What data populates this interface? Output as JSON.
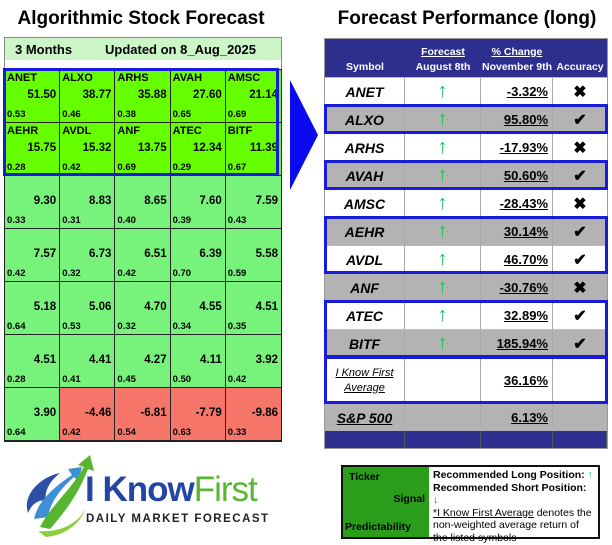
{
  "left": {
    "title": "Algorithmic Stock Forecast",
    "period": "3 Months",
    "updated": "Updated on 8_Aug_2025",
    "cells": [
      {
        "ticker": "ANET",
        "signal": "51.50",
        "pred": "0.53",
        "tone": "top"
      },
      {
        "ticker": "ALXO",
        "signal": "38.77",
        "pred": "0.46",
        "tone": "top"
      },
      {
        "ticker": "ARHS",
        "signal": "35.88",
        "pred": "0.38",
        "tone": "top"
      },
      {
        "ticker": "AVAH",
        "signal": "27.60",
        "pred": "0.65",
        "tone": "top"
      },
      {
        "ticker": "AMSC",
        "signal": "21.14",
        "pred": "0.69",
        "tone": "top"
      },
      {
        "ticker": "AEHR",
        "signal": "15.75",
        "pred": "0.28",
        "tone": "top"
      },
      {
        "ticker": "AVDL",
        "signal": "15.32",
        "pred": "0.42",
        "tone": "top"
      },
      {
        "ticker": "ANF",
        "signal": "13.75",
        "pred": "0.69",
        "tone": "top"
      },
      {
        "ticker": "ATEC",
        "signal": "12.34",
        "pred": "0.29",
        "tone": "top"
      },
      {
        "ticker": "BITF",
        "signal": "11.39",
        "pred": "0.67",
        "tone": "top"
      },
      {
        "ticker": "",
        "signal": "9.30",
        "pred": "0.33",
        "tone": "mid"
      },
      {
        "ticker": "",
        "signal": "8.83",
        "pred": "0.31",
        "tone": "mid"
      },
      {
        "ticker": "",
        "signal": "8.65",
        "pred": "0.40",
        "tone": "mid"
      },
      {
        "ticker": "",
        "signal": "7.60",
        "pred": "0.39",
        "tone": "mid"
      },
      {
        "ticker": "",
        "signal": "7.59",
        "pred": "0.43",
        "tone": "mid"
      },
      {
        "ticker": "",
        "signal": "7.57",
        "pred": "0.42",
        "tone": "mid"
      },
      {
        "ticker": "",
        "signal": "6.73",
        "pred": "0.32",
        "tone": "mid"
      },
      {
        "ticker": "",
        "signal": "6.51",
        "pred": "0.42",
        "tone": "mid"
      },
      {
        "ticker": "",
        "signal": "6.39",
        "pred": "0.70",
        "tone": "mid"
      },
      {
        "ticker": "",
        "signal": "5.58",
        "pred": "0.59",
        "tone": "mid"
      },
      {
        "ticker": "",
        "signal": "5.18",
        "pred": "0.64",
        "tone": "mid"
      },
      {
        "ticker": "",
        "signal": "5.06",
        "pred": "0.53",
        "tone": "mid"
      },
      {
        "ticker": "",
        "signal": "4.70",
        "pred": "0.32",
        "tone": "mid"
      },
      {
        "ticker": "",
        "signal": "4.55",
        "pred": "0.34",
        "tone": "mid"
      },
      {
        "ticker": "",
        "signal": "4.51",
        "pred": "0.35",
        "tone": "mid"
      },
      {
        "ticker": "",
        "signal": "4.51",
        "pred": "0.28",
        "tone": "mid"
      },
      {
        "ticker": "",
        "signal": "4.41",
        "pred": "0.41",
        "tone": "mid"
      },
      {
        "ticker": "",
        "signal": "4.27",
        "pred": "0.45",
        "tone": "mid"
      },
      {
        "ticker": "",
        "signal": "4.11",
        "pred": "0.50",
        "tone": "mid"
      },
      {
        "ticker": "",
        "signal": "3.92",
        "pred": "0.42",
        "tone": "mid"
      },
      {
        "ticker": "",
        "signal": "3.90",
        "pred": "0.64",
        "tone": "mid"
      },
      {
        "ticker": "",
        "signal": "-4.46",
        "pred": "0.42",
        "tone": "neg"
      },
      {
        "ticker": "",
        "signal": "-6.81",
        "pred": "0.54",
        "tone": "neg"
      },
      {
        "ticker": "",
        "signal": "-7.79",
        "pred": "0.63",
        "tone": "neg"
      },
      {
        "ticker": "",
        "signal": "-9.86",
        "pred": "0.33",
        "tone": "neg"
      }
    ]
  },
  "logo": {
    "brand_part1": "I Know",
    "brand_part2": "First",
    "tagline": "DAILY MARKET FORECAST"
  },
  "right": {
    "title": "Forecast Performance (long)",
    "headers": {
      "symbol": "Symbol",
      "forecast_top": "Forecast",
      "forecast_bottom": "August 8th",
      "change_top": "% Change",
      "change_bottom": "November 9th",
      "accuracy": "Accuracy"
    },
    "rows": [
      {
        "symbol": "ANET",
        "signal": "↑",
        "change": "-3.32%",
        "accuracy": "✖",
        "shade": "white",
        "boxed": false
      },
      {
        "symbol": "ALXO",
        "signal": "↑",
        "change": "95.80%",
        "accuracy": "✔",
        "shade": "gray",
        "boxed": true
      },
      {
        "symbol": "ARHS",
        "signal": "↑",
        "change": "-17.93%",
        "accuracy": "✖",
        "shade": "white",
        "boxed": false
      },
      {
        "symbol": "AVAH",
        "signal": "↑",
        "change": "50.60%",
        "accuracy": "✔",
        "shade": "gray",
        "boxed": true
      },
      {
        "symbol": "AMSC",
        "signal": "↑",
        "change": "-28.43%",
        "accuracy": "✖",
        "shade": "white",
        "boxed": false
      },
      {
        "symbol": "AEHR",
        "signal": "↑",
        "change": "30.14%",
        "accuracy": "✔",
        "shade": "gray",
        "boxed": true
      },
      {
        "symbol": "AVDL",
        "signal": "↑",
        "change": "46.70%",
        "accuracy": "✔",
        "shade": "white",
        "boxed": true
      },
      {
        "symbol": "ANF",
        "signal": "↑",
        "change": "-30.76%",
        "accuracy": "✖",
        "shade": "gray",
        "boxed": false
      },
      {
        "symbol": "ATEC",
        "signal": "↑",
        "change": "32.89%",
        "accuracy": "✔",
        "shade": "white",
        "boxed": true
      },
      {
        "symbol": "BITF",
        "signal": "↑",
        "change": "185.94%",
        "accuracy": "✔",
        "shade": "gray",
        "boxed": true
      }
    ],
    "average": {
      "label_line1": "I Know First",
      "label_line2": "Average",
      "change": "36.16%"
    },
    "benchmark": {
      "label": "S&P 500",
      "change": "6.13%"
    }
  },
  "legend": {
    "ticker": "Ticker",
    "signal": "Signal",
    "predictability": "Predictability",
    "long_label": "Recommended Long Position:",
    "short_label": "Recommended Short Position:",
    "long_icon": "↑",
    "short_icon": "↓",
    "note_link": "*I Know First Average",
    "note_rest": " denotes the non-weighted average return of the listed symbols"
  },
  "colors": {
    "top_green": "#66ff00",
    "mid_green": "#77f27a",
    "negative_red": "#f7766a",
    "highlight_blue": "#1a1adb",
    "header_navy": "#2e2e8e",
    "up_arrow": "#1fbf5a",
    "down_arrow": "#e02020"
  }
}
